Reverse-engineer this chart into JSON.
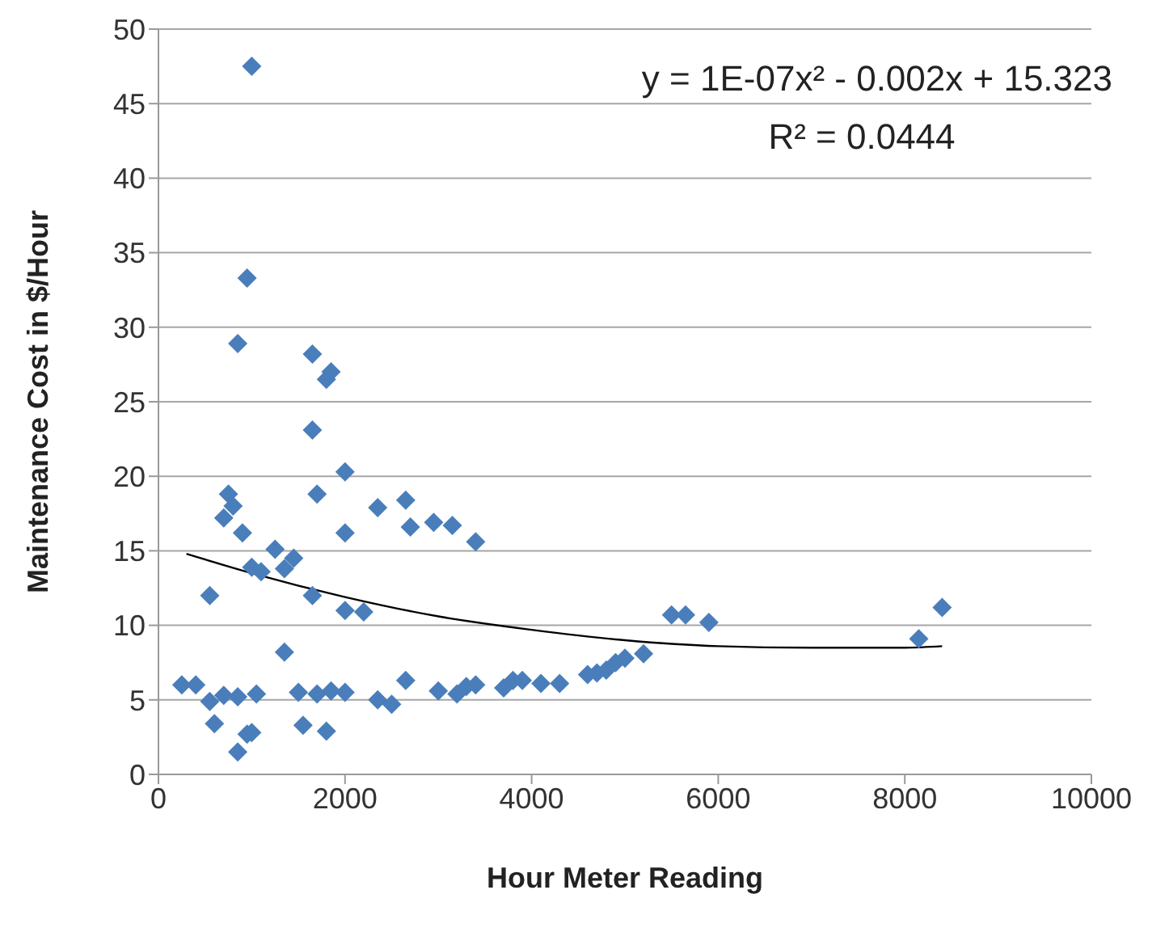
{
  "chart_data": {
    "type": "scatter",
    "xlabel": "Hour Meter Reading",
    "ylabel": "Maintenance Cost in $/Hour",
    "xlim": [
      0,
      10000
    ],
    "xticks": [
      0,
      2000,
      4000,
      6000,
      8000,
      10000
    ],
    "ylim": [
      0,
      50
    ],
    "yticks": [
      0,
      5,
      10,
      15,
      20,
      25,
      30,
      35,
      40,
      45,
      50
    ],
    "grid": "y",
    "marker": "diamond",
    "annotations": [
      "y = 1E-07x² - 0.002x + 15.323",
      "R² = 0.0444"
    ],
    "series": [
      {
        "color": "#4a7ebb",
        "x": [
          250,
          400,
          550,
          600,
          700,
          850,
          850,
          950,
          1000,
          1050,
          1350,
          1500,
          1550,
          1700,
          1800,
          1850,
          2000,
          2350,
          2500,
          2650,
          3000,
          3200,
          3300,
          3400,
          3700,
          3800,
          3900,
          4100,
          4300,
          4600,
          4700,
          4800,
          4900,
          5000,
          5200,
          5500,
          5650,
          5900,
          8150,
          8400,
          1000,
          950,
          850,
          1650,
          1850,
          1800,
          1650,
          2000,
          750,
          800,
          700,
          900,
          1700,
          2350,
          2650,
          2700,
          2950,
          3150,
          3400,
          2000,
          550,
          1000,
          1100,
          1250,
          1350,
          1450,
          1650,
          2000,
          2200
        ],
        "values": [
          6.0,
          6.0,
          4.9,
          3.4,
          5.3,
          1.5,
          5.2,
          2.7,
          2.8,
          5.4,
          8.2,
          5.5,
          3.3,
          5.4,
          2.9,
          5.6,
          5.5,
          5.0,
          4.7,
          6.3,
          5.6,
          5.4,
          5.9,
          6.0,
          5.8,
          6.3,
          6.3,
          6.1,
          6.1,
          6.7,
          6.8,
          7.0,
          7.5,
          7.8,
          8.1,
          10.7,
          10.7,
          10.2,
          9.1,
          11.2,
          47.5,
          33.3,
          28.9,
          28.2,
          27.0,
          26.5,
          23.1,
          20.3,
          18.8,
          18.0,
          17.2,
          16.2,
          18.8,
          17.9,
          18.4,
          16.6,
          16.9,
          16.7,
          15.6,
          16.2,
          12.0,
          13.9,
          13.6,
          15.1,
          13.8,
          14.5,
          12.0,
          11.0,
          10.9
        ]
      },
      {
        "type": "line",
        "color": "#000000",
        "marker": "none",
        "x": [
          300,
          1000,
          2000,
          3000,
          4000,
          5000,
          6000,
          7000,
          8000,
          8400
        ],
        "values": [
          14.8,
          13.5,
          11.9,
          10.6,
          9.7,
          9.0,
          8.6,
          8.5,
          8.5,
          8.6
        ]
      }
    ]
  }
}
